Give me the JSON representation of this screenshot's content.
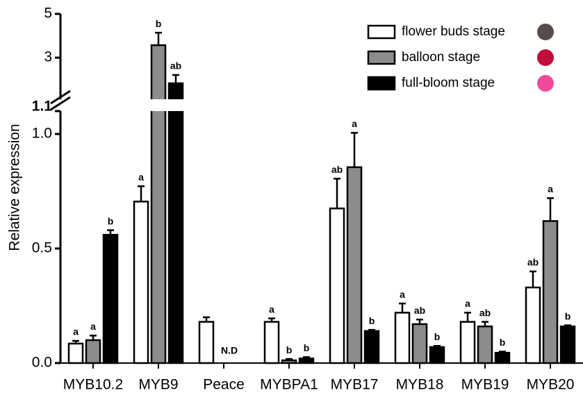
{
  "chart_data": {
    "type": "bar",
    "y_label": "Relative expression",
    "categories": [
      "MYB10.2",
      "MYB9",
      "Peace",
      "MYBPA1",
      "MYB17",
      "MYB18",
      "MYB19",
      "MYB20"
    ],
    "series": [
      {
        "name": "flower buds stage",
        "color": "#ffffff",
        "icon_color": "#5a4a4c",
        "values": [
          0.085,
          0.705,
          0.18,
          0.18,
          0.675,
          0.22,
          0.18,
          0.33
        ],
        "errors": [
          0.012,
          0.067,
          0.02,
          0.015,
          0.13,
          0.04,
          0.04,
          0.07
        ],
        "letters": [
          "a",
          "a",
          null,
          "a",
          "ab",
          "a",
          "a",
          "ab"
        ]
      },
      {
        "name": "balloon stage",
        "color": "#8c8c8c",
        "icon_color": "#c0103a",
        "values": [
          0.1,
          3.57,
          null,
          0.012,
          0.855,
          0.17,
          0.16,
          0.62
        ],
        "errors": [
          0.02,
          0.57,
          null,
          0.006,
          0.15,
          0.02,
          0.02,
          0.1
        ],
        "letters": [
          "a",
          "b",
          "N.D",
          "b",
          "a",
          "ab",
          "ab",
          "a"
        ]
      },
      {
        "name": "full-bloom stage",
        "color": "#000000",
        "icon_color": "#f04b9a",
        "values": [
          0.56,
          1.83,
          null,
          0.02,
          0.14,
          0.07,
          0.045,
          0.16
        ],
        "errors": [
          0.02,
          0.38,
          null,
          0.006,
          0.005,
          0.005,
          0.005,
          0.005
        ],
        "letters": [
          "b",
          "ab",
          null,
          "b",
          "b",
          "b",
          "b",
          "b"
        ]
      }
    ],
    "ylim": [
      0,
      5
    ],
    "ybreak": 1.1,
    "yticks": [
      {
        "value": 0,
        "label": "0.0"
      },
      {
        "value": 0.5,
        "label": "0.5"
      },
      {
        "value": 1,
        "label": "1.0"
      },
      1.1,
      3,
      5
    ],
    "legend": "upper right"
  }
}
